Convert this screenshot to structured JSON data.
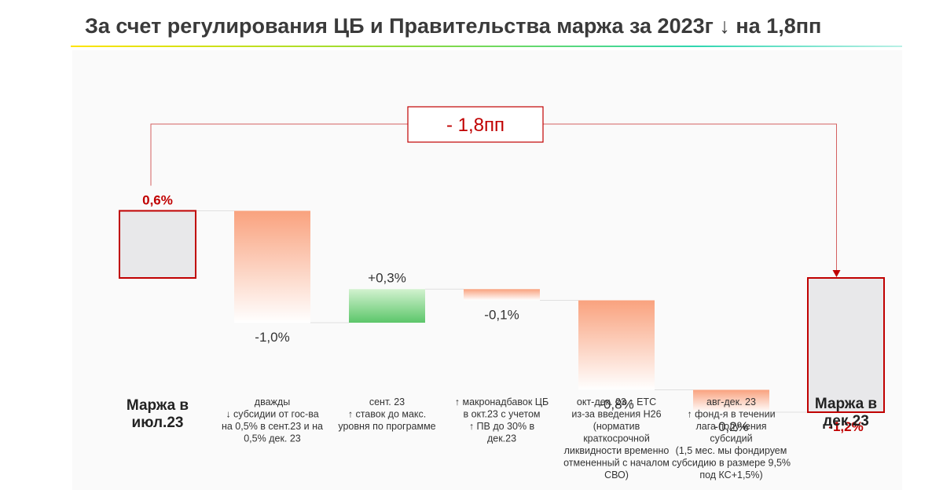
{
  "header": {
    "title": "За счет регулирования ЦБ и Правительства маржа за 2023г ↓ на 1,8пп"
  },
  "colors": {
    "total_fill": "#e8e8ea",
    "total_stroke": "#c00000",
    "negative_top": "#f9a27e",
    "negative_bottom": "#ffffff",
    "positive_top": "#d2f2cf",
    "positive_bottom": "#5cc66a",
    "connector": "#e0e0e0",
    "accent": "#c00000"
  },
  "chart_data": {
    "type": "waterfall",
    "title": "За счет регулирования ЦБ и Правительства маржа за 2023г ↓ на 1,8пп",
    "ylim": [
      -1.35,
      0.85
    ],
    "steps": [
      {
        "kind": "total",
        "value": 0.6,
        "label": "0,6%",
        "category": [
          "Маржа в",
          "июл.23"
        ]
      },
      {
        "kind": "delta",
        "value": -1.0,
        "label": "-1,0%",
        "category": [
          "дважды",
          "↓ субсидии от гос-ва",
          "на 0,5% в сент.23 и на",
          "0,5% дек. 23"
        ]
      },
      {
        "kind": "delta",
        "value": 0.3,
        "label": "+0,3%",
        "category": [
          "сент. 23",
          "↑ ставок до макс.",
          "уровня по программе"
        ]
      },
      {
        "kind": "delta",
        "value": -0.1,
        "label": "-0,1%",
        "category": [
          "↑ макронадбавок ЦБ",
          "в окт.23 с учетом",
          "↑ ПВ до 30% в",
          "дек.23"
        ]
      },
      {
        "kind": "delta",
        "value": -0.8,
        "label": "-0,8%",
        "category": [
          "окт-дек. 23 ↑ ЕТС",
          "из-за введения Н26",
          "(норматив",
          "краткосрочной",
          "ликвидности временно",
          "отмененный с началом",
          "СВО)"
        ]
      },
      {
        "kind": "delta",
        "value": -0.2,
        "label": "-0,2%",
        "category": [
          "авг-дек. 23",
          "↑ фонд-я в течении",
          "лага получения",
          "субсидий",
          "(1,5 мес. мы фондируем",
          "субсидию в размере 9,5%",
          "под КС+1,5%)"
        ]
      },
      {
        "kind": "total",
        "value": -1.2,
        "label": "-1,2%",
        "category": [
          "Маржа в",
          "дек.23"
        ]
      }
    ],
    "annotation": {
      "text": "- 1,8пп",
      "from_step": 0,
      "to_step": 6
    }
  }
}
